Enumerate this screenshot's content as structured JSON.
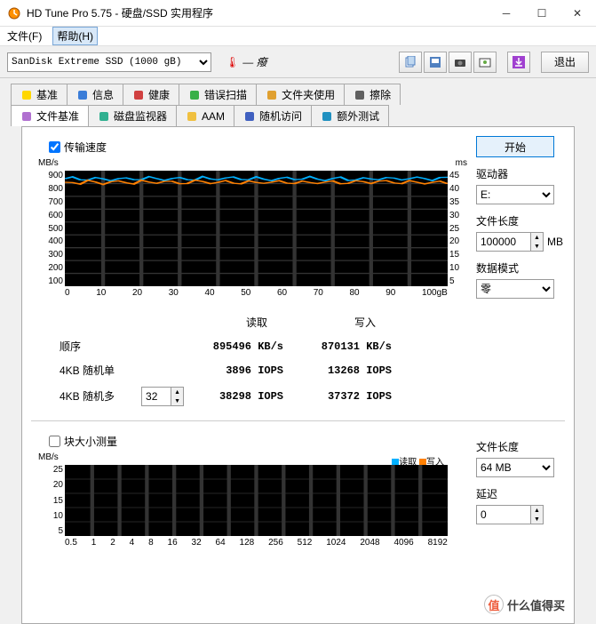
{
  "window": {
    "title": "HD Tune Pro 5.75 - 硬盘/SSD 实用程序"
  },
  "menu": {
    "file": "文件(F)",
    "help": "帮助(H)"
  },
  "toolbar": {
    "drive": "SanDisk Extreme SSD (1000 gB)",
    "temp_icon": "🌡",
    "dash": "— 癈",
    "exit": "退出"
  },
  "tabs": {
    "row1": [
      "基准",
      "信息",
      "健康",
      "错误扫描",
      "文件夹使用",
      "擦除"
    ],
    "row2": [
      "文件基准",
      "磁盘监视器",
      "AAM",
      "随机访问",
      "额外测试"
    ],
    "active": "文件基准",
    "colors": [
      "#ffd700",
      "#3b7dd8",
      "#d04040",
      "#38b048",
      "#e0a030",
      "#606060",
      "#b070d0",
      "#30b090",
      "#f0c040",
      "#4060c0",
      "#2090c0"
    ]
  },
  "transfer": {
    "checkbox_label": "传输速度",
    "checked": true,
    "yunit": "MB/s",
    "y2unit": "ms",
    "yticks": [
      "900",
      "800",
      "700",
      "600",
      "500",
      "400",
      "300",
      "200",
      "100"
    ],
    "y2ticks": [
      "45",
      "40",
      "35",
      "30",
      "25",
      "20",
      "15",
      "10",
      "5"
    ],
    "xticks": [
      "0",
      "10",
      "20",
      "30",
      "40",
      "50",
      "60",
      "70",
      "80",
      "90",
      "100gB"
    ],
    "line1_color": "#00b0ff",
    "line1_y": 0.07,
    "line2_color": "#ff8000",
    "line2_y": 0.1
  },
  "results": {
    "hdr_read": "读取",
    "hdr_write": "写入",
    "rows": [
      {
        "name": "顺序",
        "read": "895496 KB/s",
        "write": "870131 KB/s"
      },
      {
        "name": "4KB 随机单",
        "read": "3896 IOPS",
        "write": "13268 IOPS"
      },
      {
        "name": "4KB 随机多",
        "read": "38298 IOPS",
        "write": "37372 IOPS"
      }
    ],
    "spinner_value": "32"
  },
  "side": {
    "start": "开始",
    "driver_label": "驱动器",
    "driver_value": "E:",
    "filelen_label": "文件长度",
    "filelen_value": "100000",
    "filelen_unit": "MB",
    "mode_label": "数据模式",
    "mode_value": "零"
  },
  "block": {
    "checkbox_label": "块大小测量",
    "checked": false,
    "legend_read": "读取",
    "legend_write": "写入",
    "read_color": "#00b0ff",
    "write_color": "#ff8000",
    "yunit": "MB/s",
    "yticks": [
      "25",
      "20",
      "15",
      "10",
      "5"
    ],
    "xticks": [
      "0.5",
      "1",
      "2",
      "4",
      "8",
      "16",
      "32",
      "64",
      "128",
      "256",
      "512",
      "1024",
      "2048",
      "4096",
      "8192"
    ]
  },
  "side2": {
    "filelen_label": "文件长度",
    "filelen_value": "64 MB",
    "delay_label": "延迟",
    "delay_value": "0"
  },
  "watermark": {
    "symbol": "值",
    "text": "什么值得买"
  }
}
